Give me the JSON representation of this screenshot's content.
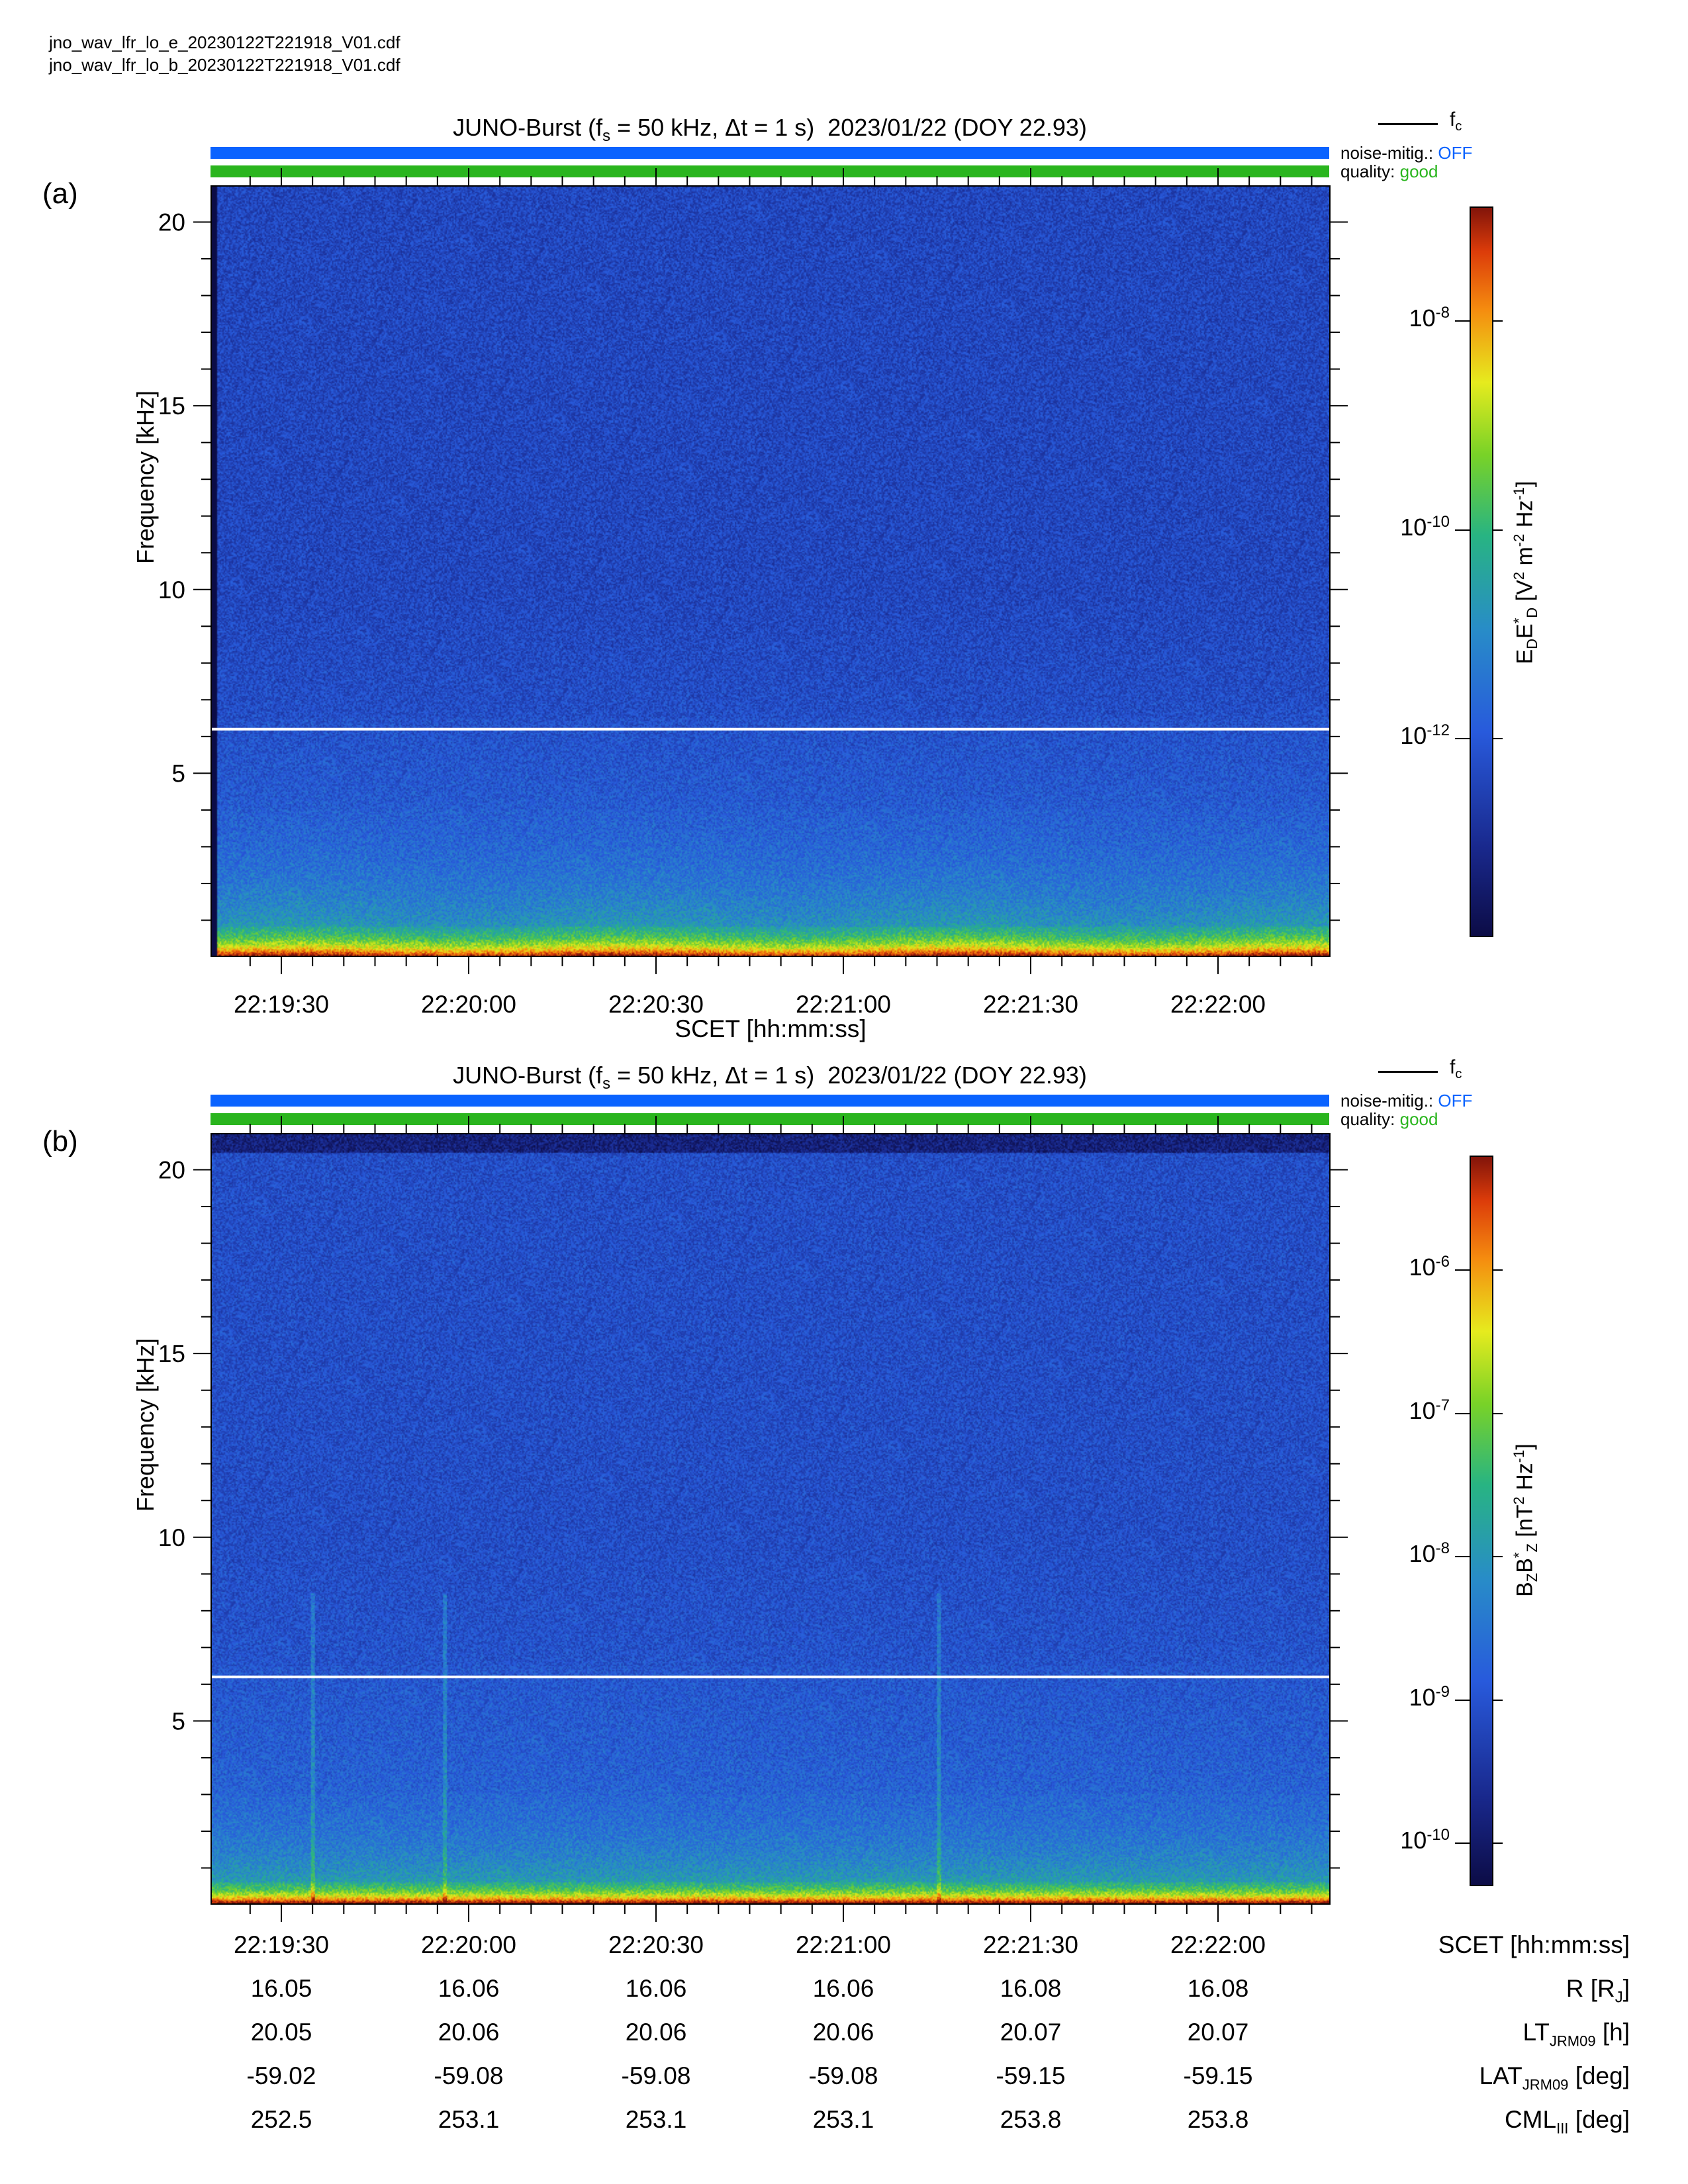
{
  "files": [
    "jno_wav_lfr_lo_e_20230122T221918_V01.cdf",
    "jno_wav_lfr_lo_b_20230122T221918_V01.cdf"
  ],
  "legend": {
    "fc_label": "fc"
  },
  "status": {
    "noise_label": "noise-mitig.:",
    "noise_value": "OFF",
    "quality_label": "quality:",
    "quality_value": "good",
    "noise_color": "#0a63ff",
    "quality_color": "#2ab51e"
  },
  "chart_data": [
    {
      "type": "heatmap",
      "panel": "(a)",
      "title": "JUNO-Burst (fs = 50 kHz, Δt = 1 s)  2023/01/22 (DOY 22.93)",
      "xlabel": "SCET [hh:mm:ss]",
      "ylabel": "Frequency [kHz]",
      "x_tick_labels": [
        "22:19:30",
        "22:20:00",
        "22:20:30",
        "22:21:00",
        "22:21:30",
        "22:22:00"
      ],
      "y_ticks": [
        5,
        10,
        15,
        20
      ],
      "ylim": [
        0,
        21
      ],
      "xlim_seconds": [
        1159,
        1340
      ],
      "fc_kHz": 6.2,
      "colorbar": {
        "label": "EDED* [V² m⁻² Hz⁻¹]",
        "scale": "log",
        "range_log10": [
          -13.9,
          -6.9
        ],
        "ticks": [
          "10-8",
          "10-10",
          "10-12"
        ],
        "tick_exp": [
          -8,
          -10,
          -12
        ]
      }
    },
    {
      "type": "heatmap",
      "panel": "(b)",
      "title": "JUNO-Burst (fs = 50 kHz, Δt = 1 s)  2023/01/22 (DOY 22.93)",
      "xlabel": "",
      "ylabel": "Frequency [kHz]",
      "x_tick_labels": [
        "22:19:30",
        "22:20:00",
        "22:20:30",
        "22:21:00",
        "22:21:30",
        "22:22:00"
      ],
      "y_ticks": [
        5,
        10,
        15,
        20
      ],
      "ylim": [
        0,
        21
      ],
      "fc_kHz": 6.2,
      "colorbar": {
        "label": "BZBZ* [nT² Hz⁻¹]",
        "scale": "log",
        "range_log10": [
          -10.3,
          -5.2
        ],
        "ticks": [
          "10-6",
          "10-7",
          "10-8",
          "10-9",
          "10-10"
        ],
        "tick_exp": [
          -6,
          -7,
          -8,
          -9,
          -10
        ]
      }
    }
  ],
  "ephemeris": {
    "rows": [
      {
        "name": "SCET [hh:mm:ss]",
        "values": [
          "22:19:30",
          "22:20:00",
          "22:20:30",
          "22:21:00",
          "22:21:30",
          "22:22:00"
        ]
      },
      {
        "name": "R [RJ]",
        "values": [
          "16.05",
          "16.06",
          "16.06",
          "16.06",
          "16.08",
          "16.08"
        ]
      },
      {
        "name": "LTJRM09 [h]",
        "values": [
          "20.05",
          "20.06",
          "20.06",
          "20.06",
          "20.07",
          "20.07"
        ]
      },
      {
        "name": "LATJRM09 [deg]",
        "values": [
          "-59.02",
          "-59.08",
          "-59.08",
          "-59.08",
          "-59.15",
          "-59.15"
        ]
      },
      {
        "name": "CMLIII [deg]",
        "values": [
          "252.5",
          "253.1",
          "253.1",
          "253.1",
          "253.8",
          "253.8"
        ]
      }
    ]
  }
}
